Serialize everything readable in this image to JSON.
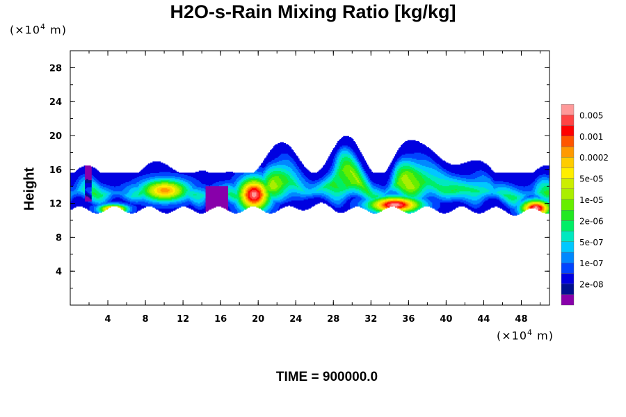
{
  "chart_data": {
    "type": "heatmap",
    "title": "H2O-s-Rain Mixing Ratio [kg/kg]",
    "xlabel": "",
    "ylabel": "Height",
    "x_unit_prefix": "(×10",
    "x_unit_exp": "4",
    "x_unit_suffix": " m)",
    "y_unit_prefix": "(×10",
    "y_unit_exp": "4",
    "y_unit_suffix": " m)",
    "xlim": [
      0,
      51
    ],
    "ylim": [
      0,
      30
    ],
    "x_ticks": [
      "4",
      "8",
      "12",
      "16",
      "20",
      "24",
      "28",
      "32",
      "36",
      "40",
      "44",
      "48"
    ],
    "y_ticks": [
      "4",
      "8",
      "12",
      "16",
      "20",
      "24",
      "28"
    ],
    "colorbar": {
      "levels": [
        {
          "color": "#8800aa"
        },
        {
          "color": "#001090",
          "label": "2e-08"
        },
        {
          "color": "#0000e0"
        },
        {
          "color": "#0044ff",
          "label": "1e-07"
        },
        {
          "color": "#0088ff"
        },
        {
          "color": "#00c8ff",
          "label": "5e-07"
        },
        {
          "color": "#00e8c0"
        },
        {
          "color": "#00ee66",
          "label": "2e-06"
        },
        {
          "color": "#22e822"
        },
        {
          "color": "#66ee00",
          "label": "1e-05"
        },
        {
          "color": "#aaee00"
        },
        {
          "color": "#ccee00",
          "label": "5e-05"
        },
        {
          "color": "#ffee00"
        },
        {
          "color": "#ffcc00",
          "label": "0.0002"
        },
        {
          "color": "#ff9900"
        },
        {
          "color": "#ff5500",
          "label": "0.001"
        },
        {
          "color": "#ff0000"
        },
        {
          "color": "#ff4444",
          "label": "0.005"
        },
        {
          "color": "#ff9999"
        }
      ]
    },
    "cloud_layer": {
      "base_height": [
        10.8,
        12.1
      ],
      "top_height": [
        17.5,
        20.0
      ],
      "peak_regions": [
        {
          "x": 19.5,
          "y": 13.0,
          "level": 16
        },
        {
          "x": 10.0,
          "y": 13.5,
          "level": 12
        },
        {
          "x": 34.5,
          "y": 11.8,
          "level": 16
        },
        {
          "x": 49.5,
          "y": 11.4,
          "level": 16
        },
        {
          "x": 4.5,
          "y": 11.3,
          "level": 14
        }
      ]
    }
  },
  "footer": {
    "time_label": "TIME = 900000.0"
  }
}
